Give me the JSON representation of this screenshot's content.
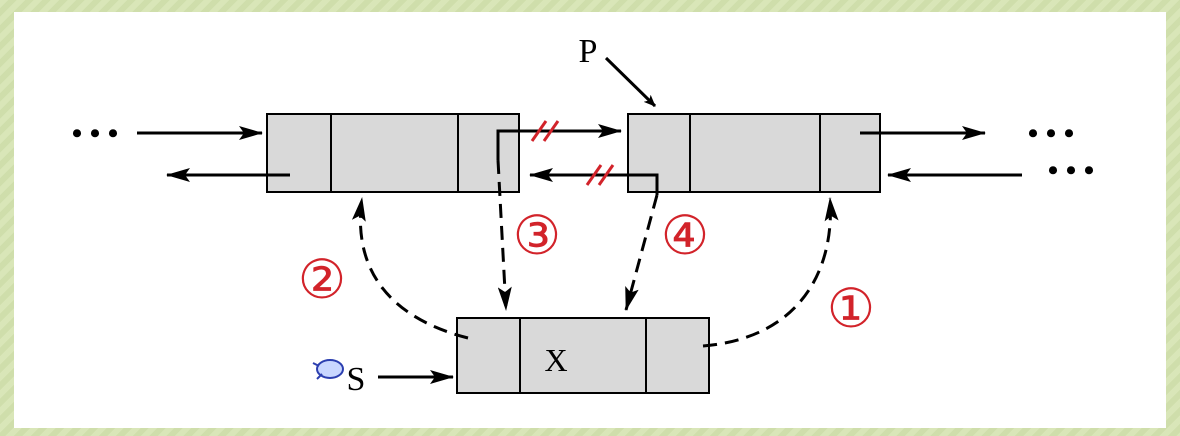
{
  "pointer_label": "P",
  "new_node_pointer_label": "S",
  "new_node_value": "X",
  "ellipsis": "• • •",
  "steps": [
    "①",
    "②",
    "③",
    "④"
  ],
  "colors": {
    "node_fill": "#d9d9d9",
    "step_red": "#d2232a",
    "arrow": "#000000",
    "background": "#d9e6b8",
    "panel": "#ffffff"
  },
  "icons": {
    "pointer_hand": "hand-pointer-icon"
  }
}
